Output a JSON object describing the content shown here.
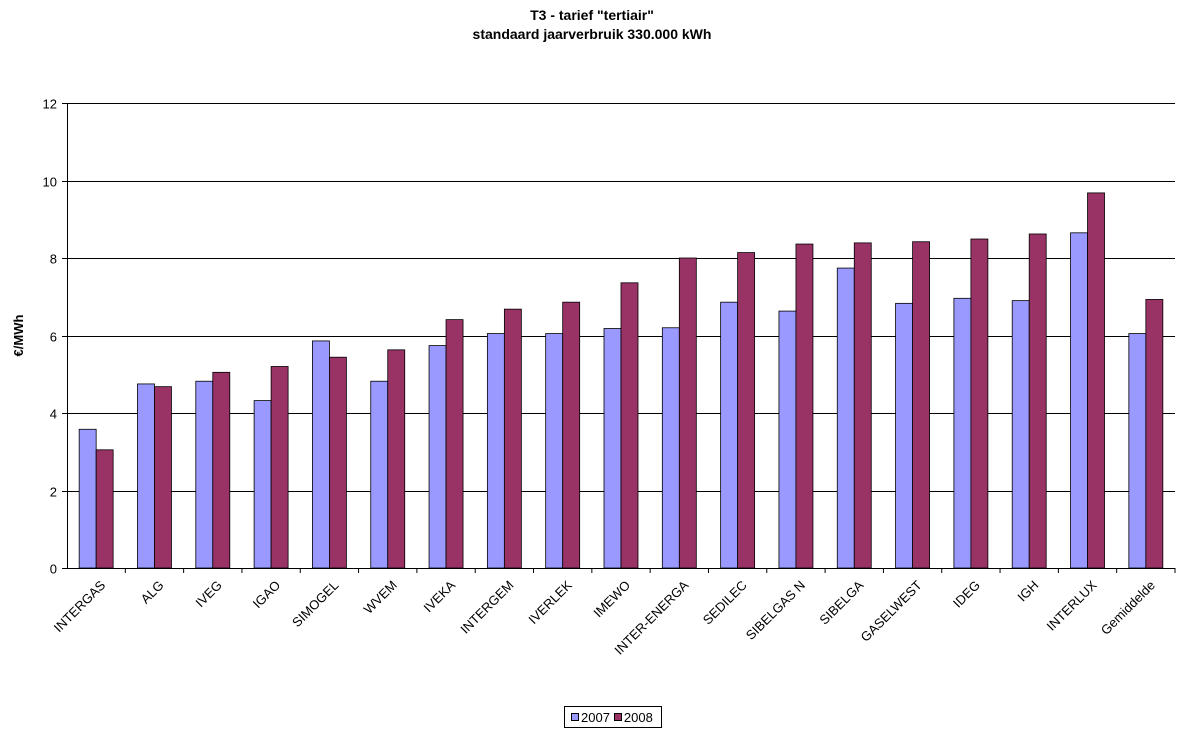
{
  "chart_data": {
    "type": "bar",
    "title": "T3 - tarief \"tertiair\"",
    "subtitle": "standaard  jaarverbruik  330.000  kWh",
    "xlabel": "",
    "ylabel": "€/MWh",
    "ylim": [
      0,
      12
    ],
    "yticks": [
      0,
      2,
      4,
      6,
      8,
      10,
      12
    ],
    "grid": true,
    "legend_position": "bottom",
    "categories": [
      "INTERGAS",
      "ALG",
      "IVEG",
      "IGAO",
      "SIMOGEL",
      "WVEM",
      "IVEKA",
      "INTERGEM",
      "IVERLEK",
      "IMEWO",
      "INTER-ENERGA",
      "SEDILEC",
      "SIBELGAS N",
      "SIBELGA",
      "GASELWEST",
      "IDEG",
      "IGH",
      "INTERLUX",
      "Gemiddelde"
    ],
    "series": [
      {
        "name": "2007",
        "color": "#9999ff",
        "values": [
          3.58,
          4.75,
          4.82,
          4.32,
          5.86,
          4.82,
          5.74,
          6.05,
          6.05,
          6.18,
          6.2,
          6.86,
          6.63,
          7.74,
          6.83,
          6.96,
          6.9,
          8.65,
          6.05
        ]
      },
      {
        "name": "2008",
        "color": "#993366",
        "values": [
          3.05,
          4.68,
          5.05,
          5.2,
          5.44,
          5.63,
          6.41,
          6.68,
          6.86,
          7.36,
          8.0,
          8.14,
          8.36,
          8.39,
          8.42,
          8.49,
          8.62,
          9.68,
          6.93
        ]
      }
    ]
  }
}
